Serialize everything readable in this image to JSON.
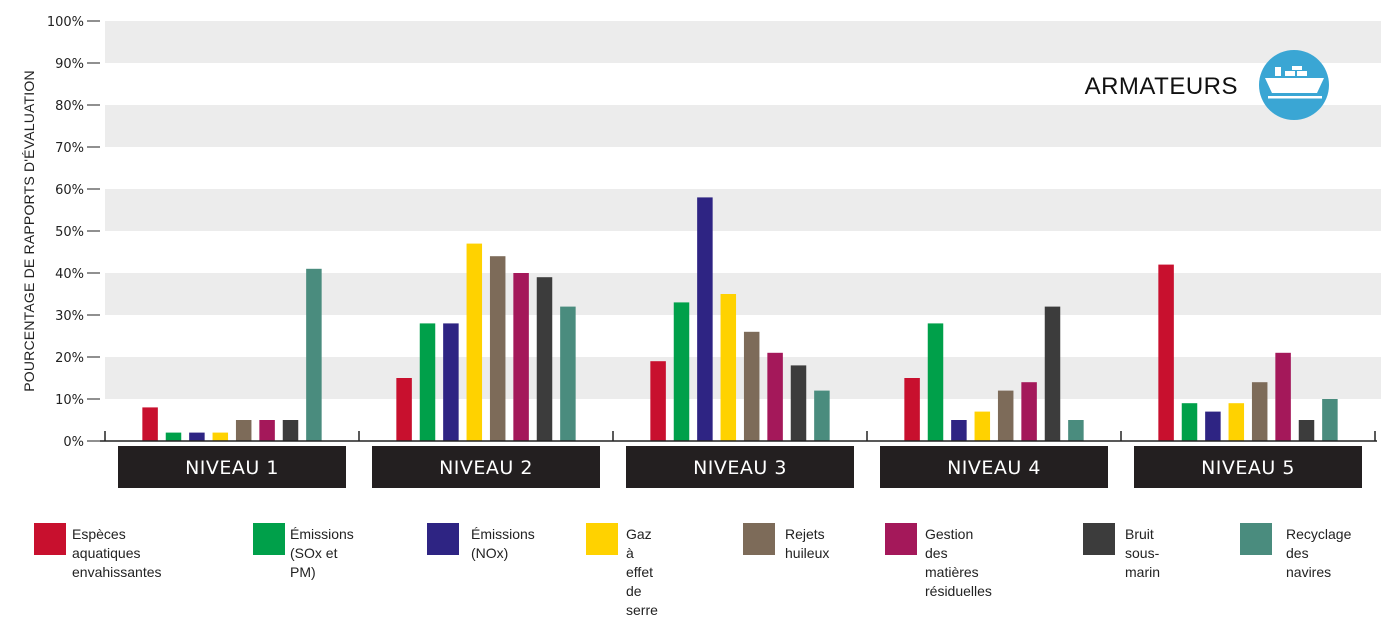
{
  "chart_data": {
    "type": "bar",
    "title": "ARMATEURS",
    "ylabel": "POURCENTAGE DE RAPPORTS D'ÉVALUATION",
    "xlabel": "",
    "ylim": [
      0,
      100
    ],
    "yticks": [
      "0%",
      "10%",
      "20%",
      "30%",
      "40%",
      "50%",
      "60%",
      "70%",
      "80%",
      "90%",
      "100%"
    ],
    "grid": "alternating-bands",
    "legend_position": "bottom",
    "categories": [
      "NIVEAU 1",
      "NIVEAU 2",
      "NIVEAU 3",
      "NIVEAU 4",
      "NIVEAU 5"
    ],
    "series": [
      {
        "name": "Espèces aquatiques\nenvahissantes",
        "color": "#c8102e",
        "values": [
          8,
          15,
          19,
          15,
          42
        ]
      },
      {
        "name": "Émissions\n(SOx et PM)",
        "color": "#00a04a",
        "values": [
          2,
          28,
          33,
          28,
          9
        ]
      },
      {
        "name": "Émissions\n(NOx)",
        "color": "#2e2483",
        "values": [
          2,
          28,
          58,
          5,
          7
        ]
      },
      {
        "name": "Gaz à effet\nde serre",
        "color": "#ffd200",
        "values": [
          2,
          47,
          35,
          7,
          9
        ]
      },
      {
        "name": "Rejets\nhuileux",
        "color": "#7d6b59",
        "values": [
          5,
          44,
          26,
          12,
          14
        ]
      },
      {
        "name": "Gestion des\nmatières résiduelles",
        "color": "#a4185a",
        "values": [
          5,
          40,
          21,
          14,
          21
        ]
      },
      {
        "name": "Bruit\nsous-marin",
        "color": "#3c3c3c",
        "values": [
          5,
          39,
          18,
          32,
          5
        ]
      },
      {
        "name": "Recyclage\ndes navires",
        "color": "#4a8c7e",
        "values": [
          41,
          32,
          12,
          5,
          10
        ]
      }
    ],
    "icon": "cargo-ship-icon",
    "icon_color": "#3aa6d4",
    "band_color": "#ececec",
    "category_box_color": "#231f20"
  }
}
